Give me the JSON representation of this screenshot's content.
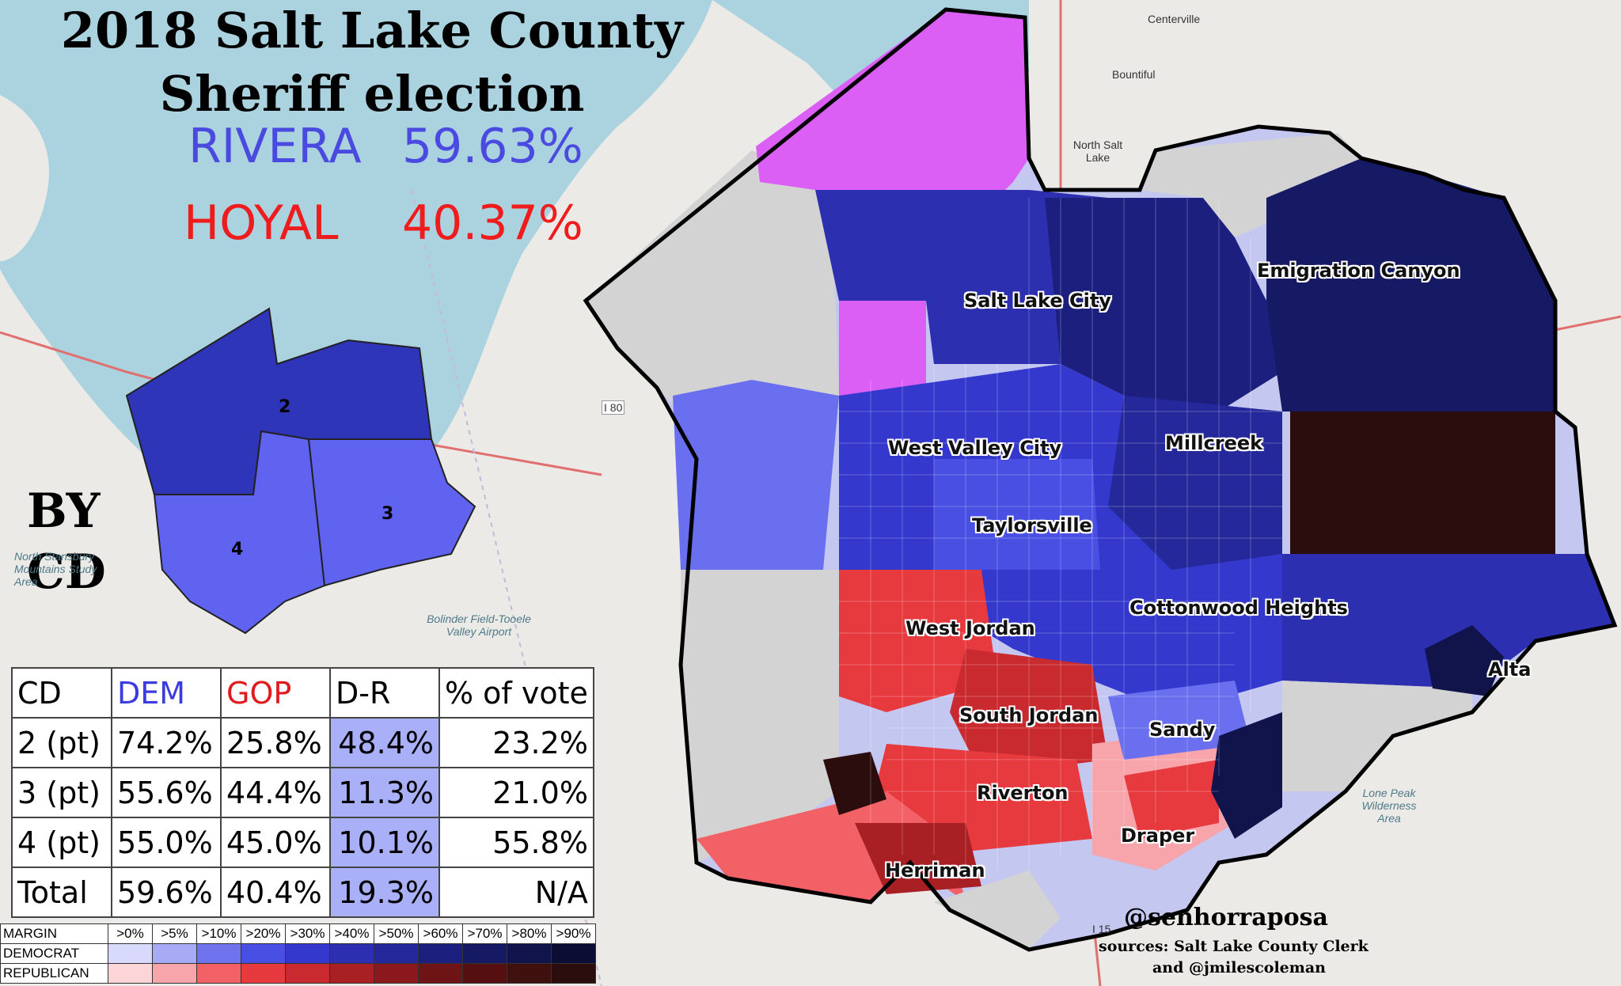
{
  "title": {
    "line1": "2018 Salt Lake County",
    "line2": "Sheriff election"
  },
  "results": [
    {
      "name": "RIVERA",
      "pct": "59.63%",
      "color": "#4a4ae0"
    },
    {
      "name": "HOYAL",
      "pct": "40.37%",
      "color": "#ee1c1c"
    }
  ],
  "by_cd_label": {
    "line1": "BY",
    "line2": "CD"
  },
  "inset_districts": [
    {
      "label": "2",
      "color": "#2e35b8"
    },
    {
      "label": "3",
      "color": "#5f63f0"
    },
    {
      "label": "4",
      "color": "#5f63f0"
    }
  ],
  "map_labels": [
    "Salt Lake City",
    "Emigration Canyon",
    "West Valley City",
    "Millcreek",
    "Taylorsville",
    "Cottonwood Heights",
    "West Jordan",
    "Alta",
    "South Jordan",
    "Sandy",
    "Riverton",
    "Draper",
    "Herriman"
  ],
  "basemap_labels": [
    "Centerville",
    "Bountiful",
    "North Salt Lake",
    "Bolinder Field-Tooele Valley Airport",
    "Lone Peak Wilderness Area",
    "North Stansbury Mountains Study Area",
    "I 80",
    "I 15"
  ],
  "cd_table": {
    "headers": [
      "CD",
      "DEM",
      "GOP",
      "D-R",
      "% of vote"
    ],
    "header_colors": {
      "DEM": "#3b3be0",
      "GOP": "#e01b1b"
    },
    "rows": [
      [
        "2 (pt)",
        "74.2%",
        "25.8%",
        "48.4%",
        "23.2%"
      ],
      [
        "3 (pt)",
        "55.6%",
        "44.4%",
        "11.3%",
        "21.0%"
      ],
      [
        "4 (pt)",
        "55.0%",
        "45.0%",
        "10.1%",
        "55.8%"
      ],
      [
        "Total",
        "59.6%",
        "40.4%",
        "19.3%",
        "N/A"
      ]
    ]
  },
  "legend": {
    "margin_label": "MARGIN",
    "dem_label": "DEMOCRAT",
    "rep_label": "REPUBLICAN",
    "bins": [
      ">0%",
      ">5%",
      ">10%",
      ">20%",
      ">30%",
      ">40%",
      ">50%",
      ">60%",
      ">70%",
      ">80%",
      ">90%"
    ],
    "dem_colors": [
      "#d8d9fb",
      "#a7abf6",
      "#6f73ee",
      "#4a4fe3",
      "#3538cc",
      "#2b2fb0",
      "#24289a",
      "#1c1f7e",
      "#161963",
      "#11134b",
      "#0c0d34"
    ],
    "rep_colors": [
      "#fbd5d8",
      "#f7a4aa",
      "#f26166",
      "#e63a3f",
      "#c92a2f",
      "#a81f24",
      "#8a181c",
      "#6e1316",
      "#560f11",
      "#40100f",
      "#2a0d0c"
    ]
  },
  "credits": {
    "handle": "@senhorraposa",
    "sources_line1": "sources: Salt Lake County Clerk",
    "sources_line2": "and @jmilescoleman"
  }
}
